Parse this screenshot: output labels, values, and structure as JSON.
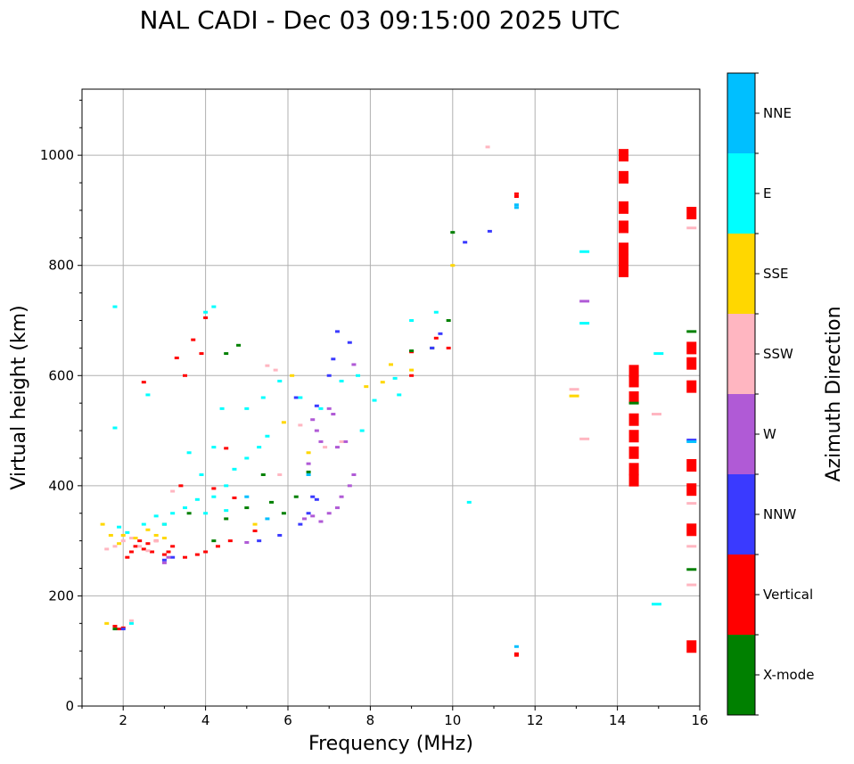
{
  "chart_data": {
    "type": "scatter",
    "title": "NAL CADI - Dec 03 09:15:00 2025 UTC",
    "xlabel": "Frequency (MHz)",
    "ylabel": "Virtual height (km)",
    "xlim": [
      1,
      16
    ],
    "ylim": [
      0,
      1120
    ],
    "xticks": [
      2,
      4,
      6,
      8,
      10,
      12,
      14,
      16
    ],
    "yticks": [
      0,
      200,
      400,
      600,
      800,
      1000
    ],
    "grid": true,
    "colorbar": {
      "label": "Azimuth Direction",
      "categories": [
        {
          "name": "X-mode",
          "color": "#008000"
        },
        {
          "name": "Vertical",
          "color": "#ff0000"
        },
        {
          "name": "NNW",
          "color": "#3a3aff"
        },
        {
          "name": "W",
          "color": "#b05ad6"
        },
        {
          "name": "SSW",
          "color": "#ffb6c1"
        },
        {
          "name": "SSE",
          "color": "#ffd700"
        },
        {
          "name": "E",
          "color": "#00ffff"
        },
        {
          "name": "NNE",
          "color": "#00bfff"
        }
      ]
    },
    "series": [
      {
        "name": "Vertical",
        "points": [
          [
            1.8,
            145
          ],
          [
            1.9,
            140
          ],
          [
            2.0,
            142
          ],
          [
            2.1,
            270
          ],
          [
            2.2,
            280
          ],
          [
            2.3,
            290
          ],
          [
            2.4,
            300
          ],
          [
            2.5,
            285
          ],
          [
            2.6,
            295
          ],
          [
            2.7,
            280
          ],
          [
            2.8,
            300
          ],
          [
            3.0,
            275
          ],
          [
            3.1,
            280
          ],
          [
            3.2,
            290
          ],
          [
            3.5,
            270
          ],
          [
            3.8,
            275
          ],
          [
            4.0,
            280
          ],
          [
            4.3,
            290
          ],
          [
            4.6,
            300
          ],
          [
            5.2,
            318
          ],
          [
            2.5,
            588
          ],
          [
            3.3,
            632
          ],
          [
            3.5,
            600
          ],
          [
            3.7,
            665
          ],
          [
            3.9,
            640
          ],
          [
            4.0,
            705
          ],
          [
            4.5,
            468
          ],
          [
            4.7,
            378
          ],
          [
            4.2,
            395
          ],
          [
            3.4,
            400
          ],
          [
            9.0,
            600
          ],
          [
            9.0,
            643
          ],
          [
            9.6,
            668
          ],
          [
            9.9,
            650
          ],
          [
            11.55,
            95
          ],
          [
            11.55,
            92
          ],
          [
            11.55,
            925
          ],
          [
            11.55,
            930
          ],
          [
            14.15,
            790
          ],
          [
            14.15,
            810
          ],
          [
            14.15,
            830
          ],
          [
            14.15,
            870
          ],
          [
            14.15,
            905
          ],
          [
            14.15,
            960
          ],
          [
            14.15,
            1000
          ],
          [
            14.4,
            410
          ],
          [
            14.4,
            430
          ],
          [
            14.4,
            460
          ],
          [
            14.4,
            490
          ],
          [
            14.4,
            520
          ],
          [
            14.4,
            560
          ],
          [
            14.4,
            590
          ],
          [
            14.4,
            608
          ],
          [
            15.8,
            108
          ],
          [
            15.8,
            320
          ],
          [
            15.8,
            393
          ],
          [
            15.8,
            437
          ],
          [
            15.8,
            580
          ],
          [
            15.8,
            622
          ],
          [
            15.8,
            650
          ],
          [
            15.8,
            895
          ]
        ]
      },
      {
        "name": "X-mode",
        "points": [
          [
            1.8,
            140
          ],
          [
            3.0,
            330
          ],
          [
            4.2,
            300
          ],
          [
            4.5,
            340
          ],
          [
            5.0,
            360
          ],
          [
            5.4,
            420
          ],
          [
            5.6,
            370
          ],
          [
            5.9,
            350
          ],
          [
            6.2,
            380
          ],
          [
            6.5,
            425
          ],
          [
            3.6,
            350
          ],
          [
            9.0,
            645
          ],
          [
            9.5,
            650
          ],
          [
            9.9,
            700
          ],
          [
            10.0,
            860
          ],
          [
            14.4,
            550
          ],
          [
            15.8,
            248
          ],
          [
            15.8,
            680
          ],
          [
            4.8,
            655
          ],
          [
            4.5,
            640
          ]
        ]
      },
      {
        "name": "NNW",
        "points": [
          [
            3.0,
            265
          ],
          [
            3.2,
            270
          ],
          [
            5.3,
            300
          ],
          [
            5.8,
            310
          ],
          [
            6.3,
            330
          ],
          [
            6.5,
            350
          ],
          [
            6.6,
            380
          ],
          [
            6.7,
            375
          ],
          [
            7.0,
            600
          ],
          [
            7.1,
            630
          ],
          [
            7.2,
            680
          ],
          [
            7.5,
            660
          ],
          [
            6.7,
            545
          ],
          [
            6.2,
            560
          ],
          [
            9.5,
            650
          ],
          [
            9.7,
            676
          ],
          [
            10.3,
            842
          ],
          [
            10.9,
            862
          ],
          [
            15.8,
            483
          ],
          [
            2.0,
            140
          ]
        ]
      },
      {
        "name": "W",
        "points": [
          [
            6.4,
            340
          ],
          [
            6.6,
            345
          ],
          [
            6.8,
            335
          ],
          [
            7.0,
            350
          ],
          [
            7.2,
            360
          ],
          [
            7.3,
            380
          ],
          [
            7.5,
            400
          ],
          [
            7.6,
            420
          ],
          [
            6.5,
            440
          ],
          [
            6.8,
            480
          ],
          [
            7.0,
            540
          ],
          [
            7.2,
            470
          ],
          [
            7.4,
            480
          ],
          [
            6.7,
            500
          ],
          [
            6.6,
            520
          ],
          [
            13.2,
            735
          ],
          [
            7.6,
            620
          ],
          [
            7.1,
            530
          ],
          [
            3.0,
            260
          ],
          [
            3.1,
            270
          ],
          [
            5.0,
            297
          ]
        ]
      },
      {
        "name": "SSW",
        "points": [
          [
            1.6,
            285
          ],
          [
            1.8,
            290
          ],
          [
            2.0,
            300
          ],
          [
            2.2,
            305
          ],
          [
            2.4,
            290
          ],
          [
            2.6,
            282
          ],
          [
            2.8,
            300
          ],
          [
            3.2,
            390
          ],
          [
            5.8,
            420
          ],
          [
            6.3,
            510
          ],
          [
            6.9,
            470
          ],
          [
            7.3,
            480
          ],
          [
            5.5,
            618
          ],
          [
            5.7,
            610
          ],
          [
            10.85,
            1015
          ],
          [
            12.95,
            575
          ],
          [
            13.2,
            485
          ],
          [
            14.95,
            530
          ],
          [
            15.8,
            220
          ],
          [
            15.8,
            290
          ],
          [
            15.8,
            368
          ],
          [
            15.8,
            868
          ],
          [
            2.2,
            155
          ]
        ]
      },
      {
        "name": "SSE",
        "points": [
          [
            1.5,
            330
          ],
          [
            1.7,
            310
          ],
          [
            1.9,
            295
          ],
          [
            2.0,
            310
          ],
          [
            2.3,
            305
          ],
          [
            2.6,
            320
          ],
          [
            2.8,
            310
          ],
          [
            3.0,
            305
          ],
          [
            5.2,
            330
          ],
          [
            6.1,
            600
          ],
          [
            7.9,
            580
          ],
          [
            8.3,
            588
          ],
          [
            8.5,
            620
          ],
          [
            9.0,
            610
          ],
          [
            10.0,
            800
          ],
          [
            12.95,
            563
          ],
          [
            5.9,
            515
          ],
          [
            1.6,
            150
          ],
          [
            6.5,
            460
          ]
        ]
      },
      {
        "name": "E",
        "points": [
          [
            1.9,
            325
          ],
          [
            2.1,
            315
          ],
          [
            2.5,
            330
          ],
          [
            2.8,
            345
          ],
          [
            3.0,
            330
          ],
          [
            3.2,
            350
          ],
          [
            3.5,
            360
          ],
          [
            3.8,
            375
          ],
          [
            4.0,
            350
          ],
          [
            4.2,
            380
          ],
          [
            4.5,
            400
          ],
          [
            4.7,
            430
          ],
          [
            5.0,
            450
          ],
          [
            5.3,
            470
          ],
          [
            5.5,
            490
          ],
          [
            5.0,
            540
          ],
          [
            5.4,
            560
          ],
          [
            5.8,
            590
          ],
          [
            6.3,
            560
          ],
          [
            6.8,
            540
          ],
          [
            7.3,
            590
          ],
          [
            7.7,
            600
          ],
          [
            7.8,
            500
          ],
          [
            8.1,
            555
          ],
          [
            8.6,
            595
          ],
          [
            8.7,
            565
          ],
          [
            9.0,
            700
          ],
          [
            9.6,
            715
          ],
          [
            3.9,
            420
          ],
          [
            4.2,
            470
          ],
          [
            4.4,
            540
          ],
          [
            3.6,
            460
          ],
          [
            2.6,
            565
          ],
          [
            1.8,
            505
          ],
          [
            1.8,
            725
          ],
          [
            4.0,
            715
          ],
          [
            4.2,
            725
          ],
          [
            4.5,
            355
          ],
          [
            13.2,
            825
          ],
          [
            13.2,
            695
          ],
          [
            10.4,
            370
          ],
          [
            14.95,
            185
          ],
          [
            15.0,
            640
          ],
          [
            2.2,
            150
          ]
        ]
      },
      {
        "name": "NNE",
        "points": [
          [
            5.0,
            380
          ],
          [
            5.5,
            340
          ],
          [
            6.5,
            420
          ],
          [
            11.55,
            910
          ],
          [
            11.55,
            905
          ],
          [
            11.55,
            108
          ],
          [
            15.8,
            480
          ]
        ]
      }
    ]
  }
}
